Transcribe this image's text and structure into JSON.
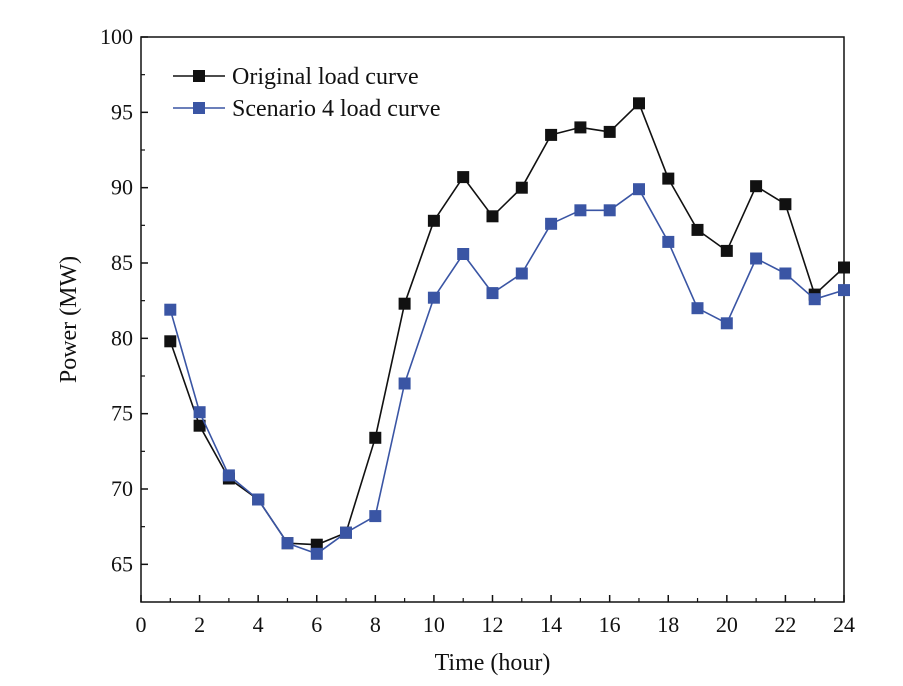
{
  "chart_data": {
    "type": "line",
    "title": "",
    "xlabel": "Time (hour)",
    "ylabel": "Power (MW)",
    "xlim": [
      0,
      24
    ],
    "ylim": [
      62.5,
      100
    ],
    "xticks": [
      0,
      2,
      4,
      6,
      8,
      10,
      12,
      14,
      16,
      18,
      20,
      22,
      24
    ],
    "yticks": [
      65,
      70,
      75,
      80,
      85,
      90,
      95,
      100
    ],
    "grid": false,
    "legend_position": "top-left",
    "x": [
      1,
      2,
      3,
      4,
      5,
      6,
      7,
      8,
      9,
      10,
      11,
      12,
      13,
      14,
      15,
      16,
      17,
      18,
      19,
      20,
      21,
      22,
      23,
      24
    ],
    "series": [
      {
        "name": "Original load curve",
        "color": "#111111",
        "marker": "square",
        "values": [
          79.8,
          74.2,
          70.7,
          69.3,
          66.4,
          66.3,
          67.1,
          73.4,
          82.3,
          87.8,
          90.7,
          88.1,
          90.0,
          93.5,
          94.0,
          93.7,
          95.6,
          90.6,
          87.2,
          85.8,
          90.1,
          88.9,
          82.9,
          84.7
        ]
      },
      {
        "name": "Scenario 4 load curve",
        "color": "#3a55a4",
        "marker": "square",
        "values": [
          81.9,
          75.1,
          70.9,
          69.3,
          66.4,
          65.7,
          67.1,
          68.2,
          77.0,
          82.7,
          85.6,
          83.0,
          84.3,
          87.6,
          88.5,
          88.5,
          89.9,
          86.4,
          82.0,
          81.0,
          85.3,
          84.3,
          82.6,
          83.2
        ]
      }
    ]
  }
}
